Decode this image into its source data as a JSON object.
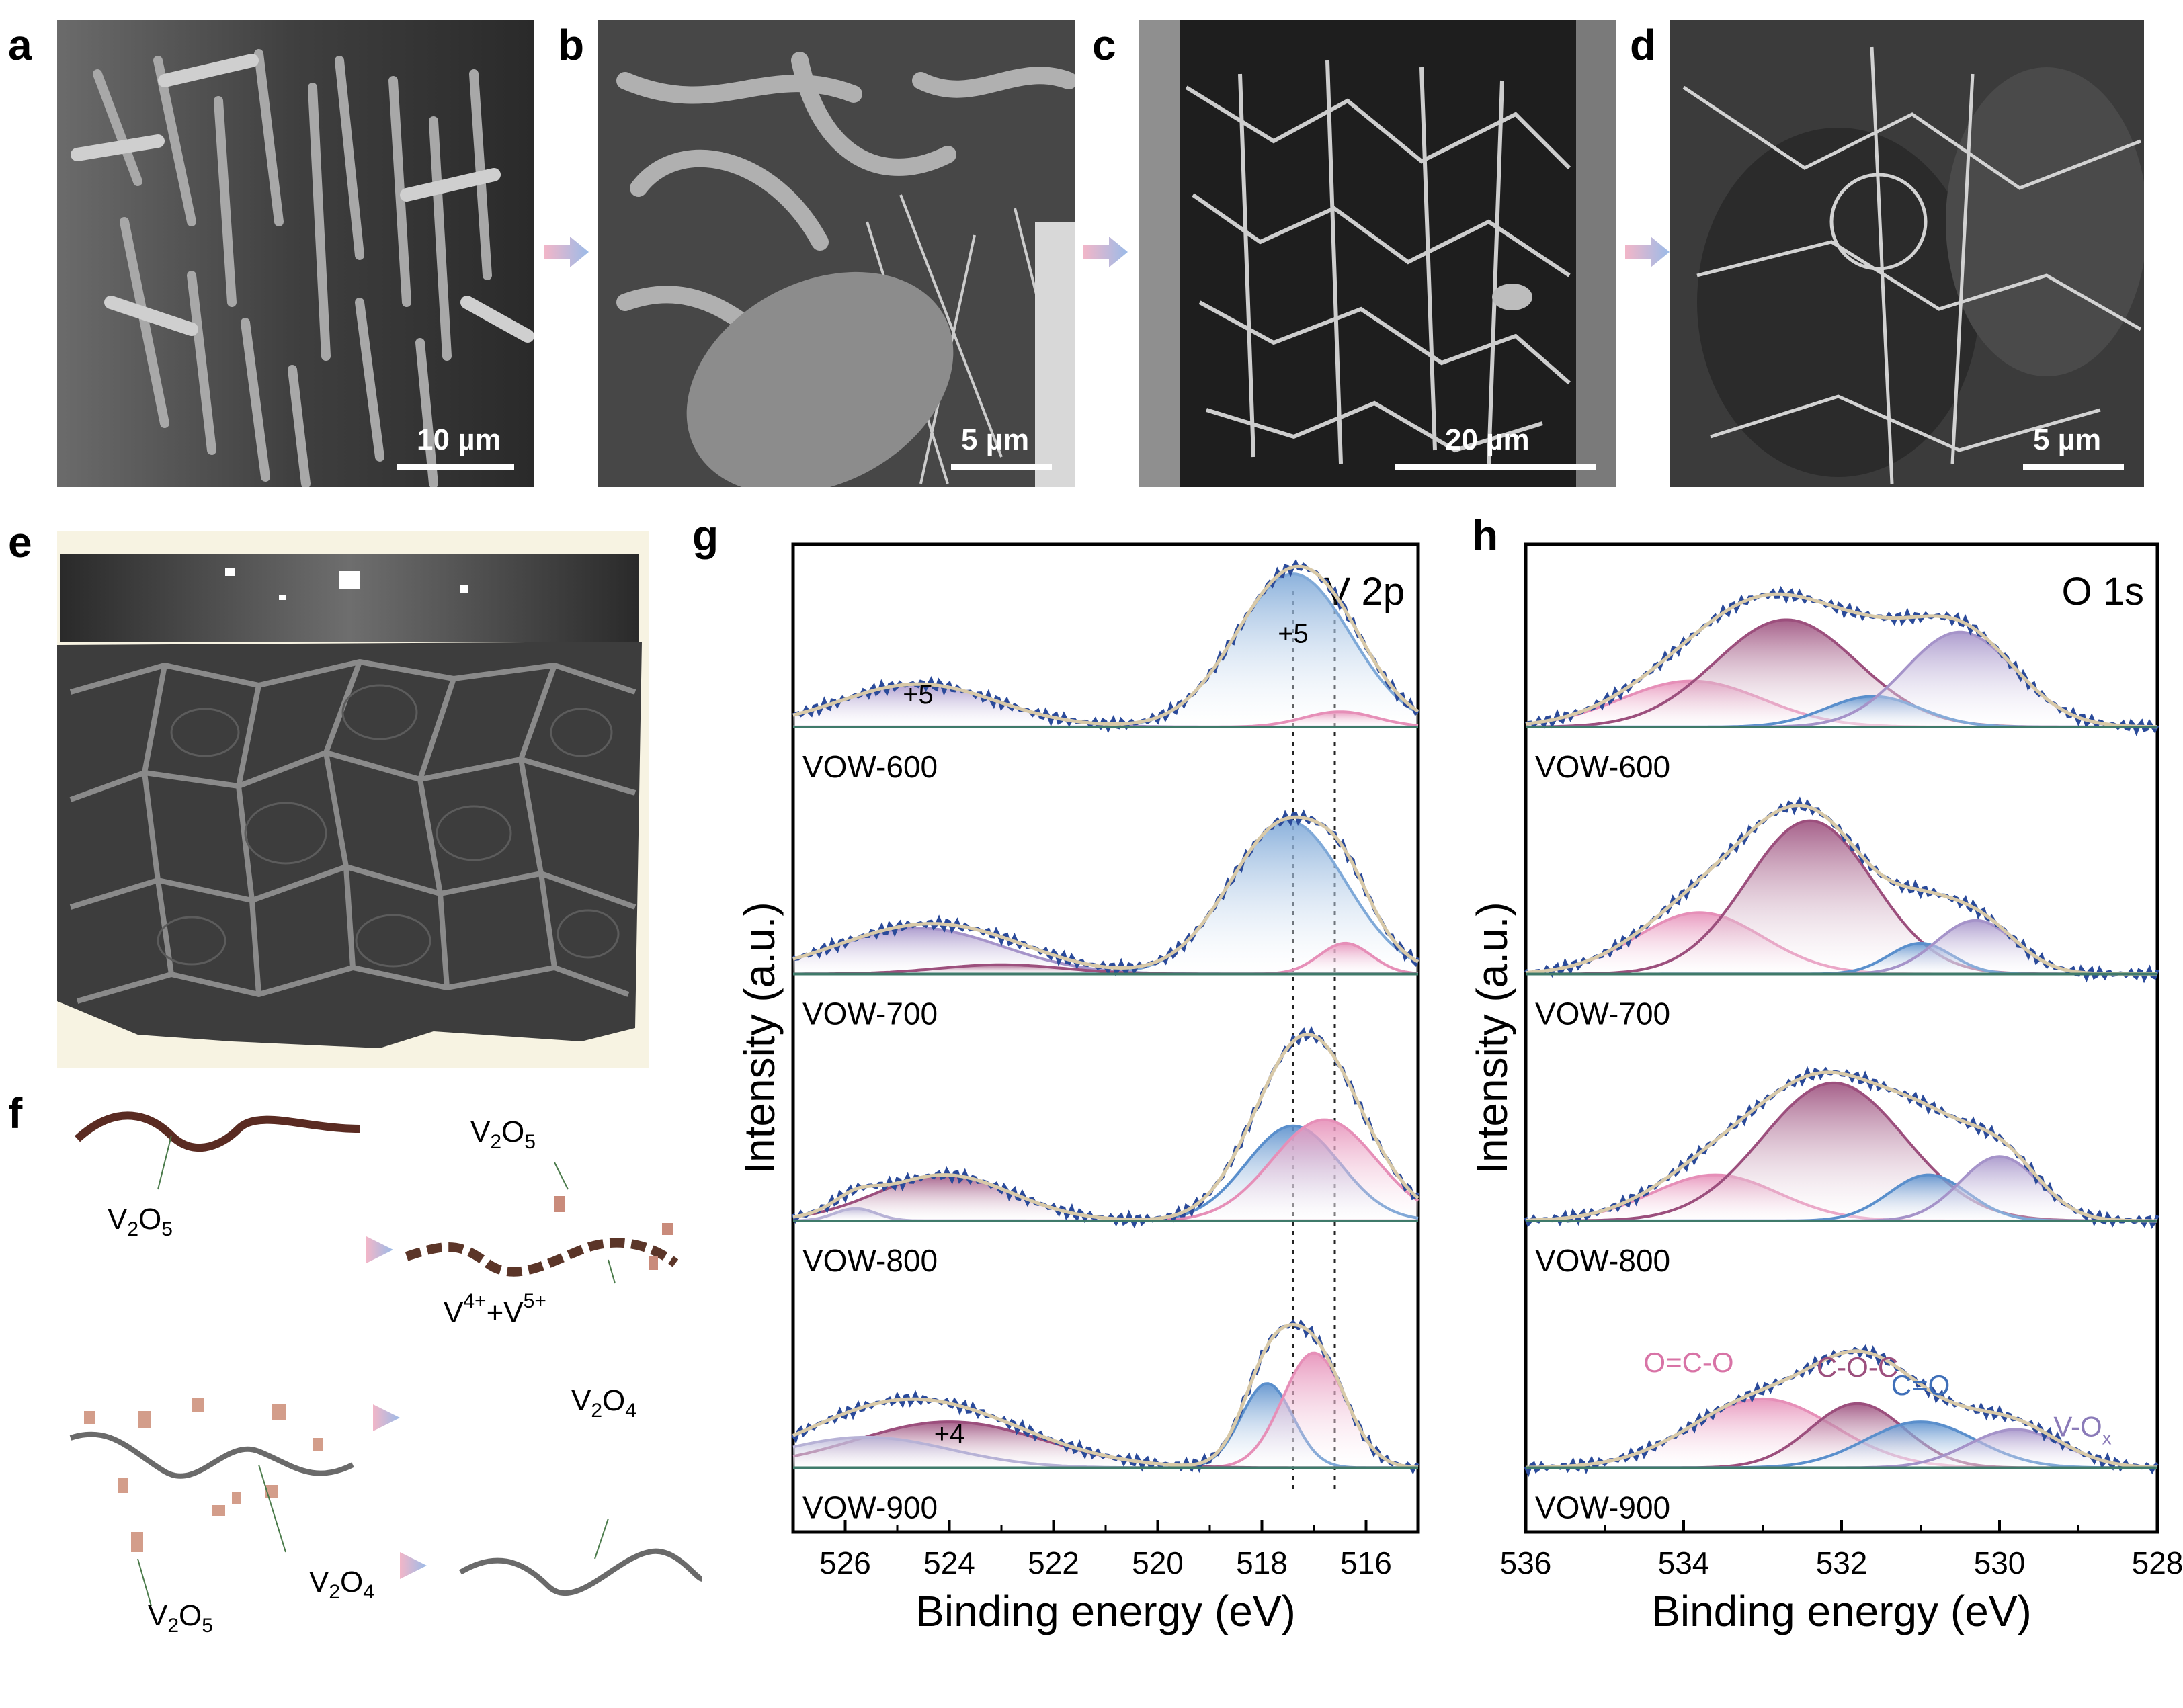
{
  "panels": {
    "a": {
      "letter": "a",
      "scale": "10 µm"
    },
    "b": {
      "letter": "b",
      "scale": "5 µm"
    },
    "c": {
      "letter": "c",
      "scale": "20 µm"
    },
    "d": {
      "letter": "d",
      "scale": "5 µm"
    },
    "e": {
      "letter": "e"
    },
    "f": {
      "letter": "f"
    },
    "g": {
      "letter": "g"
    },
    "h": {
      "letter": "h"
    }
  },
  "schematic": {
    "v2o5_a": "V",
    "v2o5_b": "V",
    "v2o5_c": "V",
    "mixed": "V",
    "v2o4_a": "V",
    "v2o4_b": "V",
    "o": "O",
    "n2": "2",
    "n5": "5",
    "n4": "4",
    "plus": "+",
    "sup4": "4+",
    "sup5": "5+"
  },
  "chart_data": [
    {
      "type": "line",
      "panel": "g",
      "title": "V 2p",
      "xlabel": "Binding energy (eV)",
      "ylabel": "Intensity (a.u.)",
      "xlim": [
        527,
        515
      ],
      "xticks": [
        526,
        524,
        522,
        520,
        518,
        516
      ],
      "reference_lines": [
        517.4,
        516.6
      ],
      "series": [
        {
          "name": "VOW-600",
          "peaks": [
            {
              "center": 517.4,
              "height": 1.0,
              "width": 1.1,
              "color": "#7fa9d8",
              "state": "+5"
            },
            {
              "center": 516.5,
              "height": 0.1,
              "width": 0.7,
              "color": "#e68fb8",
              "state": ""
            },
            {
              "center": 524.6,
              "height": 0.28,
              "width": 1.5,
              "color": "#a593c9",
              "state": "+5"
            }
          ],
          "annotations": [
            "+5",
            "+5"
          ]
        },
        {
          "name": "VOW-700",
          "peaks": [
            {
              "center": 517.5,
              "height": 1.0,
              "width": 1.1,
              "color": "#7fa9d8"
            },
            {
              "center": 516.4,
              "height": 0.2,
              "width": 0.5,
              "color": "#e68fb8"
            },
            {
              "center": 524.6,
              "height": 0.3,
              "width": 1.6,
              "color": "#a593c9"
            },
            {
              "center": 523.0,
              "height": 0.06,
              "width": 1.2,
              "color": "#9c4f7d"
            }
          ]
        },
        {
          "name": "VOW-800",
          "peaks": [
            {
              "center": 517.4,
              "height": 0.62,
              "width": 0.9,
              "color": "#5a8fcc"
            },
            {
              "center": 516.8,
              "height": 0.66,
              "width": 1.0,
              "color": "#e68fb8"
            },
            {
              "center": 524.1,
              "height": 0.3,
              "width": 1.3,
              "color": "#9c4f7d"
            },
            {
              "center": 525.8,
              "height": 0.08,
              "width": 0.4,
              "color": "#b7b2d6"
            }
          ]
        },
        {
          "name": "VOW-900",
          "peaks": [
            {
              "center": 517.9,
              "height": 0.55,
              "width": 0.5,
              "color": "#5a8fcc"
            },
            {
              "center": 517.0,
              "height": 0.75,
              "width": 0.6,
              "color": "#e68fb8"
            },
            {
              "center": 524.0,
              "height": 0.3,
              "width": 1.8,
              "color": "#9c4f7d",
              "state": "+4"
            },
            {
              "center": 525.6,
              "height": 0.2,
              "width": 1.6,
              "color": "#b7b2d6"
            }
          ],
          "annotations": [
            "+4",
            "+4"
          ]
        }
      ]
    },
    {
      "type": "line",
      "panel": "h",
      "title": "O 1s",
      "xlabel": "Binding energy (eV)",
      "ylabel": "Intensity (a.u.)",
      "xlim": [
        536,
        528
      ],
      "xticks": [
        536,
        534,
        532,
        530,
        528
      ],
      "component_labels": [
        "O=C-O",
        "C-O-C",
        "C=O",
        "V-O"
      ],
      "component_label_subscript": "x",
      "series": [
        {
          "name": "VOW-600",
          "peaks": [
            {
              "center": 533.9,
              "height": 0.3,
              "width": 0.9,
              "color": "#e68fb8"
            },
            {
              "center": 532.7,
              "height": 0.7,
              "width": 0.9,
              "color": "#9c4f7d"
            },
            {
              "center": 531.6,
              "height": 0.2,
              "width": 0.6,
              "color": "#5a8fcc"
            },
            {
              "center": 530.5,
              "height": 0.62,
              "width": 0.7,
              "color": "#a593c9"
            }
          ]
        },
        {
          "name": "VOW-700",
          "peaks": [
            {
              "center": 533.8,
              "height": 0.4,
              "width": 0.8,
              "color": "#e68fb8"
            },
            {
              "center": 532.4,
              "height": 1.0,
              "width": 0.8,
              "color": "#9c4f7d"
            },
            {
              "center": 531.0,
              "height": 0.2,
              "width": 0.4,
              "color": "#5a8fcc"
            },
            {
              "center": 530.3,
              "height": 0.35,
              "width": 0.5,
              "color": "#a593c9"
            }
          ]
        },
        {
          "name": "VOW-800",
          "peaks": [
            {
              "center": 533.6,
              "height": 0.3,
              "width": 0.8,
              "color": "#e68fb8"
            },
            {
              "center": 532.1,
              "height": 0.9,
              "width": 0.9,
              "color": "#9c4f7d"
            },
            {
              "center": 530.9,
              "height": 0.3,
              "width": 0.5,
              "color": "#5a8fcc"
            },
            {
              "center": 530.0,
              "height": 0.42,
              "width": 0.5,
              "color": "#a593c9"
            }
          ]
        },
        {
          "name": "VOW-900",
          "peaks": [
            {
              "center": 533.0,
              "height": 0.45,
              "width": 0.9,
              "color": "#e68fb8"
            },
            {
              "center": 531.8,
              "height": 0.42,
              "width": 0.6,
              "color": "#9c4f7d"
            },
            {
              "center": 531.0,
              "height": 0.3,
              "width": 0.7,
              "color": "#5a8fcc"
            },
            {
              "center": 529.8,
              "height": 0.25,
              "width": 0.6,
              "color": "#a593c9"
            }
          ]
        }
      ]
    }
  ]
}
